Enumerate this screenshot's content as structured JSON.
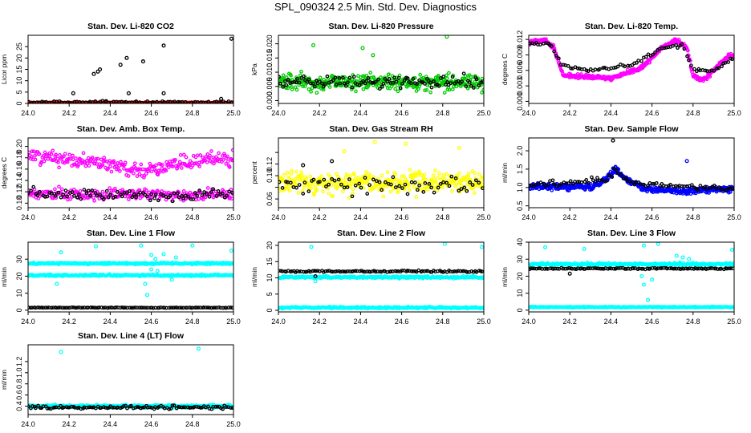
{
  "page": {
    "title": "SPL_090324  2.5 Min. Std. Dev. Diagnostics"
  },
  "colors": {
    "black": "#000000",
    "red": "#ff0000",
    "green": "#00cc00",
    "magenta": "#ff00ff",
    "yellow": "#ffff00",
    "blue": "#0000ff",
    "cyan": "#00ffff"
  },
  "chart_data": [
    {
      "type": "scatter",
      "title": "Stan. Dev. Li-820 CO2",
      "ylabel": "Licor ppm",
      "xlim": [
        24.0,
        25.0
      ],
      "ylim": [
        0,
        30
      ],
      "xticks": [
        24.0,
        24.2,
        24.4,
        24.6,
        24.8,
        25.0
      ],
      "xtick_labels": [
        "24.0",
        "24.2",
        "24.4",
        "24.6",
        "24.8",
        "25.0"
      ],
      "yticks": [
        0,
        5,
        10,
        15,
        20,
        25
      ],
      "ytick_labels": [
        "0",
        "5",
        "10",
        "15",
        "20",
        "25"
      ],
      "series": [
        {
          "name": "series-1",
          "color": "#ff0000",
          "base": 0.3,
          "noise": 0.2,
          "n": 200,
          "outliers": []
        },
        {
          "name": "series-2",
          "color": "#000000",
          "base": 0.6,
          "noise": 0.5,
          "n": 80,
          "outliers": [
            [
              24.22,
              4.5
            ],
            [
              24.32,
              13.0
            ],
            [
              24.34,
              14.0
            ],
            [
              24.35,
              15.0
            ],
            [
              24.38,
              1.0
            ],
            [
              24.45,
              17.0
            ],
            [
              24.48,
              20.0
            ],
            [
              24.49,
              4.5
            ],
            [
              24.56,
              18.5
            ],
            [
              24.66,
              25.5
            ],
            [
              24.66,
              4.5
            ],
            [
              24.94,
              2.0
            ],
            [
              24.99,
              28.5
            ]
          ]
        }
      ]
    },
    {
      "type": "scatter",
      "title": "Stan. Dev. Li-820 Pressure",
      "ylabel": "kPa",
      "xlim": [
        24.0,
        25.0
      ],
      "ylim": [
        -0.001,
        0.023
      ],
      "xticks": [
        24.0,
        24.2,
        24.4,
        24.6,
        24.8,
        25.0
      ],
      "xtick_labels": [
        "24.0",
        "24.2",
        "24.4",
        "24.6",
        "24.8",
        "25.0"
      ],
      "yticks": [
        0.0,
        0.005,
        0.01,
        0.015,
        0.02
      ],
      "ytick_labels": [
        "0.000",
        "0.005",
        "0.010",
        "0.015",
        "0.020"
      ],
      "series": [
        {
          "name": "series-1",
          "color": "#00cc00",
          "base": 0.0065,
          "noise": 0.0028,
          "n": 380,
          "outliers": [
            [
              24.17,
              0.0195
            ],
            [
              24.41,
              0.0185
            ],
            [
              24.82,
              0.0225
            ],
            [
              24.46,
              0.016
            ]
          ]
        },
        {
          "name": "series-2",
          "color": "#000000",
          "base": 0.0065,
          "noise": 0.0022,
          "n": 110,
          "outliers": []
        }
      ]
    },
    {
      "type": "scatter",
      "title": "Stan. Dev. Li-820 Temp.",
      "ylabel": "degrees C",
      "xlim": [
        24.0,
        25.0
      ],
      "ylim": [
        -0.0004,
        0.0128
      ],
      "xticks": [
        24.0,
        24.2,
        24.4,
        24.6,
        24.8,
        25.0
      ],
      "xtick_labels": [
        "24.0",
        "24.2",
        "24.4",
        "24.6",
        "24.8",
        "25.0"
      ],
      "yticks": [
        0.0,
        0.003,
        0.006,
        0.009,
        0.012
      ],
      "ytick_labels": [
        "0.000",
        "0.003",
        "0.006",
        "0.009",
        "0.012"
      ],
      "series": [
        {
          "name": "series-1",
          "color": "#ff00ff",
          "base": 0.006,
          "noise": 0.0004,
          "n": 420,
          "outliers": [],
          "curve": [
            [
              24.0,
              0.0115
            ],
            [
              24.08,
              0.0118
            ],
            [
              24.12,
              0.0105
            ],
            [
              24.17,
              0.005
            ],
            [
              24.25,
              0.0048
            ],
            [
              24.4,
              0.0045
            ],
            [
              24.55,
              0.0065
            ],
            [
              24.65,
              0.0105
            ],
            [
              24.72,
              0.0118
            ],
            [
              24.77,
              0.0105
            ],
            [
              24.8,
              0.005
            ],
            [
              24.85,
              0.004
            ],
            [
              24.9,
              0.006
            ],
            [
              24.97,
              0.0088
            ],
            [
              25.0,
              0.009
            ]
          ]
        },
        {
          "name": "series-2",
          "color": "#000000",
          "base": 0.006,
          "noise": 0.0003,
          "n": 90,
          "outliers": [],
          "curve": [
            [
              24.0,
              0.0112
            ],
            [
              24.1,
              0.0112
            ],
            [
              24.16,
              0.007
            ],
            [
              24.3,
              0.006
            ],
            [
              24.5,
              0.007
            ],
            [
              24.65,
              0.0102
            ],
            [
              24.75,
              0.011
            ],
            [
              24.8,
              0.006
            ],
            [
              24.9,
              0.006
            ],
            [
              25.0,
              0.0085
            ]
          ]
        }
      ]
    },
    {
      "type": "scatter",
      "title": "Stan. Dev. Amb. Box Temp.",
      "ylabel": "degrees C",
      "xlim": [
        24.0,
        25.0
      ],
      "ylim": [
        0.092,
        0.215
      ],
      "xticks": [
        24.0,
        24.2,
        24.4,
        24.6,
        24.8,
        25.0
      ],
      "xtick_labels": [
        "24.0",
        "24.2",
        "24.4",
        "24.6",
        "24.8",
        "25.0"
      ],
      "yticks": [
        0.1,
        0.12,
        0.14,
        0.16,
        0.18,
        0.2
      ],
      "ytick_labels": [
        "0.10",
        "0.12",
        "0.14",
        "0.16",
        "0.18",
        "0.20"
      ],
      "series": [
        {
          "name": "series-1",
          "color": "#ff00ff",
          "base": 0.175,
          "noise": 0.012,
          "n": 260,
          "outliers": [],
          "curve": [
            [
              24.0,
              0.185
            ],
            [
              24.2,
              0.178
            ],
            [
              24.4,
              0.168
            ],
            [
              24.55,
              0.158
            ],
            [
              24.7,
              0.165
            ],
            [
              24.85,
              0.175
            ],
            [
              25.0,
              0.182
            ]
          ]
        },
        {
          "name": "series-3",
          "color": "#ff00ff",
          "base": 0.115,
          "noise": 0.01,
          "n": 240,
          "outliers": []
        },
        {
          "name": "series-2",
          "color": "#000000",
          "base": 0.115,
          "noise": 0.01,
          "n": 90,
          "outliers": []
        }
      ]
    },
    {
      "type": "scatter",
      "title": "Stan. Dev. Gas Stream RH",
      "ylabel": "percent",
      "xlim": [
        24.0,
        25.0
      ],
      "ylim": [
        0.045,
        0.165
      ],
      "xticks": [
        24.0,
        24.2,
        24.4,
        24.6,
        24.8,
        25.0
      ],
      "xtick_labels": [
        "24.0",
        "24.2",
        "24.4",
        "24.6",
        "24.8",
        "25.0"
      ],
      "yticks": [
        0.06,
        0.08,
        0.1,
        0.12,
        0.14
      ],
      "ytick_labels": [
        "0.06",
        "",
        "0.10",
        "0.12",
        ""
      ],
      "series": [
        {
          "name": "series-1",
          "color": "#ffff00",
          "base": 0.088,
          "noise": 0.018,
          "n": 380,
          "outliers": [
            [
              24.47,
              0.158
            ],
            [
              24.62,
              0.155
            ],
            [
              24.88,
              0.148
            ],
            [
              24.32,
              0.142
            ]
          ]
        },
        {
          "name": "series-2",
          "color": "#000000",
          "base": 0.085,
          "noise": 0.014,
          "n": 70,
          "outliers": [
            [
              24.26,
              0.125
            ],
            [
              24.12,
              0.118
            ]
          ]
        }
      ]
    },
    {
      "type": "scatter",
      "title": "Stan. Dev. Sample Flow",
      "ylabel": "ml/min",
      "xlim": [
        24.0,
        25.0
      ],
      "ylim": [
        0.45,
        2.35
      ],
      "xticks": [
        24.0,
        24.2,
        24.4,
        24.6,
        24.8,
        25.0
      ],
      "xtick_labels": [
        "24.0",
        "24.2",
        "24.4",
        "24.6",
        "24.8",
        "25.0"
      ],
      "yticks": [
        0.5,
        1.0,
        1.5,
        2.0
      ],
      "ytick_labels": [
        "0.5",
        "1.0",
        "1.5",
        "2.0"
      ],
      "series": [
        {
          "name": "series-1",
          "color": "#0000ff",
          "base": 1.0,
          "noise": 0.08,
          "n": 420,
          "outliers": [
            [
              24.77,
              1.72
            ]
          ],
          "curve": [
            [
              24.0,
              1.05
            ],
            [
              24.3,
              1.0
            ],
            [
              24.38,
              1.25
            ],
            [
              24.42,
              1.5
            ],
            [
              24.46,
              1.3
            ],
            [
              24.55,
              1.0
            ],
            [
              24.7,
              0.9
            ],
            [
              25.0,
              0.95
            ]
          ]
        },
        {
          "name": "series-2",
          "color": "#000000",
          "base": 1.0,
          "noise": 0.08,
          "n": 90,
          "outliers": [
            [
              24.41,
              2.28
            ]
          ],
          "curve": [
            [
              24.0,
              1.05
            ],
            [
              24.38,
              1.2
            ],
            [
              24.42,
              1.45
            ],
            [
              24.5,
              1.1
            ],
            [
              25.0,
              0.95
            ]
          ]
        }
      ]
    },
    {
      "type": "scatter",
      "title": "Stan. Dev. Line 1 Flow",
      "ylabel": "ml/min",
      "xlim": [
        24.0,
        25.0
      ],
      "ylim": [
        -1,
        40
      ],
      "xticks": [
        24.0,
        24.2,
        24.4,
        24.6,
        24.8,
        25.0
      ],
      "xtick_labels": [
        "24.0",
        "24.2",
        "24.4",
        "24.6",
        "24.8",
        "25.0"
      ],
      "yticks": [
        0,
        10,
        20,
        30
      ],
      "ytick_labels": [
        "0",
        "10",
        "20",
        "30"
      ],
      "series": [
        {
          "name": "series-1",
          "color": "#00ffff",
          "base": 27.5,
          "noise": 0.5,
          "n": 320,
          "outliers": [
            [
              24.16,
              34.0
            ],
            [
              24.33,
              37.5
            ],
            [
              24.55,
              38.0
            ],
            [
              24.6,
              32.5
            ],
            [
              24.62,
              30.0
            ],
            [
              24.66,
              33.0
            ],
            [
              24.72,
              31.0
            ],
            [
              24.8,
              38.0
            ],
            [
              24.99,
              35.0
            ]
          ]
        },
        {
          "name": "series-3",
          "color": "#00ffff",
          "base": 20.5,
          "noise": 0.5,
          "n": 320,
          "outliers": [
            [
              24.14,
              15.5
            ],
            [
              24.57,
              15.5
            ],
            [
              24.58,
              9.0
            ],
            [
              24.6,
              24.0
            ],
            [
              24.63,
              23.0
            ],
            [
              24.7,
              18.0
            ]
          ]
        },
        {
          "name": "series-2",
          "color": "#000000",
          "base": 1.5,
          "noise": 0.15,
          "n": 110,
          "outliers": []
        }
      ]
    },
    {
      "type": "scatter",
      "title": "Stan. Dev. Line 2 Flow",
      "ylabel": "ml/min",
      "xlim": [
        24.0,
        25.0
      ],
      "ylim": [
        -0.5,
        21
      ],
      "xticks": [
        24.0,
        24.2,
        24.4,
        24.6,
        24.8,
        25.0
      ],
      "xtick_labels": [
        "24.0",
        "24.2",
        "24.4",
        "24.6",
        "24.8",
        "25.0"
      ],
      "yticks": [
        0,
        5,
        10,
        15,
        20
      ],
      "ytick_labels": [
        "0",
        "5",
        "10",
        "15",
        "20"
      ],
      "series": [
        {
          "name": "series-1",
          "color": "#00ffff",
          "base": 10.2,
          "noise": 0.3,
          "n": 320,
          "outliers": [
            [
              24.16,
              19.5
            ],
            [
              24.81,
              20.5
            ],
            [
              24.99,
              19.5
            ],
            [
              24.18,
              9.0
            ]
          ]
        },
        {
          "name": "series-3",
          "color": "#00ffff",
          "base": 0.8,
          "noise": 0.25,
          "n": 320,
          "outliers": []
        },
        {
          "name": "series-2",
          "color": "#000000",
          "base": 12.0,
          "noise": 0.25,
          "n": 110,
          "outliers": [
            [
              24.18,
              10.5
            ]
          ]
        }
      ]
    },
    {
      "type": "scatter",
      "title": "Stan. Dev. Line 3 Flow",
      "ylabel": "ml/min",
      "xlim": [
        24.0,
        25.0
      ],
      "ylim": [
        -1,
        40
      ],
      "xticks": [
        24.0,
        24.2,
        24.4,
        24.6,
        24.8,
        25.0
      ],
      "xtick_labels": [
        "24.0",
        "24.2",
        "24.4",
        "24.6",
        "24.8",
        "25.0"
      ],
      "yticks": [
        0,
        10,
        20,
        30,
        40
      ],
      "ytick_labels": [
        "0",
        "10",
        "20",
        "30",
        "40"
      ],
      "series": [
        {
          "name": "series-1",
          "color": "#00ffff",
          "base": 27.0,
          "noise": 0.7,
          "n": 320,
          "outliers": [
            [
              24.08,
              37.0
            ],
            [
              24.27,
              36.0
            ],
            [
              24.56,
              38.0
            ],
            [
              24.63,
              39.0
            ],
            [
              24.72,
              32.0
            ],
            [
              24.75,
              31.0
            ],
            [
              24.78,
              30.0
            ],
            [
              24.99,
              35.5
            ],
            [
              24.56,
              15.0
            ],
            [
              24.58,
              6.0
            ],
            [
              24.6,
              18.0
            ],
            [
              24.55,
              20.0
            ]
          ]
        },
        {
          "name": "series-3",
          "color": "#00ffff",
          "base": 1.8,
          "noise": 0.3,
          "n": 320,
          "outliers": []
        },
        {
          "name": "series-2",
          "color": "#000000",
          "base": 24.5,
          "noise": 0.4,
          "n": 110,
          "outliers": [
            [
              24.2,
              21.5
            ]
          ]
        }
      ]
    },
    {
      "type": "scatter",
      "title": "Stan. Dev. Line 4 (LT) Flow",
      "ylabel": "ml/min",
      "xlim": [
        24.0,
        25.0
      ],
      "ylim": [
        0.25,
        1.5
      ],
      "xticks": [
        24.0,
        24.2,
        24.4,
        24.6,
        24.8,
        25.0
      ],
      "xtick_labels": [
        "24.0",
        "24.2",
        "24.4",
        "24.6",
        "24.8",
        "25.0"
      ],
      "yticks": [
        0.4,
        0.6,
        0.8,
        1.0,
        1.2
      ],
      "ytick_labels": [
        "0.4",
        "0.6",
        "0.8",
        "1.0",
        "1.2"
      ],
      "series": [
        {
          "name": "series-1",
          "color": "#00ffff",
          "base": 0.4,
          "noise": 0.025,
          "n": 420,
          "outliers": [
            [
              24.16,
              1.37
            ],
            [
              24.83,
              1.43
            ]
          ]
        },
        {
          "name": "series-2",
          "color": "#000000",
          "base": 0.38,
          "noise": 0.03,
          "n": 110,
          "outliers": []
        }
      ]
    }
  ]
}
